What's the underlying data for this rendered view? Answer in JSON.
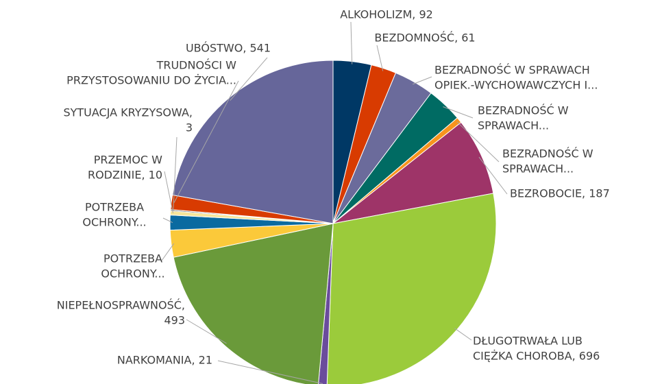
{
  "chart_data": {
    "type": "pie",
    "values": [
      92,
      61,
      97,
      86,
      14,
      187,
      696,
      21,
      493,
      65,
      36,
      10,
      3,
      35,
      541
    ],
    "value_labels": [
      [
        "ALKOHOLIZM, 92"
      ],
      [
        "BEZDOMNOŚĆ, 61"
      ],
      [
        "BEZRADNOŚĆ W SPRAWACH",
        "OPIEK.-WYCHOWAWCZYCH I..."
      ],
      [
        "BEZRADNOŚĆ W",
        "SPRAWACH..."
      ],
      [
        "BEZRADNOŚĆ W",
        "SPRAWACH..."
      ],
      [
        "BEZROBOCIE, 187"
      ],
      [
        "DŁUGOTRWAŁA LUB",
        "CIĘŻKA CHOROBA, 696"
      ],
      [
        "NARKOMANIA, 21"
      ],
      [
        "NIEPEŁNOSPRAWNOŚĆ,",
        "493"
      ],
      [
        "POTRZEBA",
        "OCHRONY..."
      ],
      [
        "POTRZEBA",
        "OCHRONY..."
      ],
      [
        "PRZEMOC W",
        "RODZINIE, 10"
      ],
      [
        "SYTUACJA KRYZYSOWA,",
        "3"
      ],
      [
        "TRUDNOŚCI W",
        "PRZYSTOSOWANIU DO ŻYCIA..."
      ],
      [
        "UBÓSTWO, 541"
      ]
    ],
    "colors": [
      "#003865",
      "#d83b01",
      "#6b6b9b",
      "#006b63",
      "#f7941d",
      "#9e3468",
      "#9bcb3b",
      "#6a4c9c",
      "#6a9a3a",
      "#fbc93a",
      "#0a6aa0",
      "#f6e59a",
      "#555555",
      "#d83b01",
      "#66669a"
    ]
  }
}
